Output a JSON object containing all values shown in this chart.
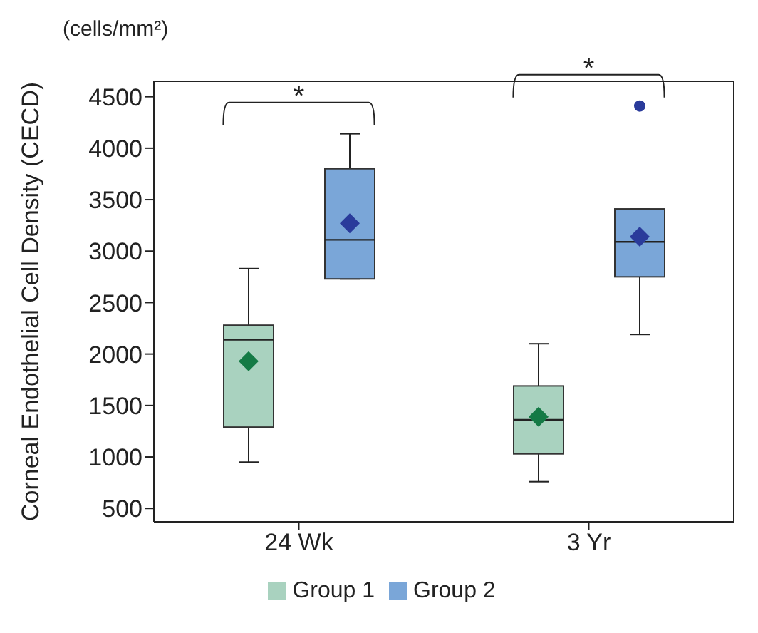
{
  "chart_data": {
    "type": "box",
    "ylabel": "Corneal Endothelial Cell Density (CECD)",
    "annotations": [
      "(cells/mm²)",
      "*",
      "*"
    ],
    "categories": [
      "24 Wk",
      "3 Yr"
    ],
    "series": [
      {
        "name": "Group 1",
        "color": "#a9d2bf",
        "boxes": [
          {
            "low": 950,
            "q1": 1290,
            "median": 2140,
            "q3": 2280,
            "high": 2830,
            "mean": 1930
          },
          {
            "low": 760,
            "q1": 1030,
            "median": 1360,
            "q3": 1690,
            "high": 2100,
            "mean": 1390
          }
        ]
      },
      {
        "name": "Group 2",
        "color": "#7aa6d8",
        "boxes": [
          {
            "low": 2730,
            "q1": 2730,
            "median": 3110,
            "q3": 3800,
            "high": 4140,
            "mean": 3270
          },
          {
            "low": 2190,
            "q1": 2750,
            "median": 3090,
            "q3": 3410,
            "high": 3410,
            "mean": 3140,
            "outliers": [
              4410
            ]
          }
        ]
      }
    ],
    "ylim": [
      370,
      4650
    ],
    "yticks": [
      500,
      1000,
      1500,
      2000,
      2500,
      3000,
      3500,
      4000,
      4500
    ],
    "grid": false,
    "legend": "bottom",
    "marker": "diamond"
  }
}
